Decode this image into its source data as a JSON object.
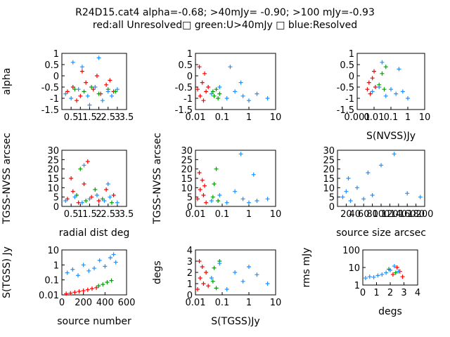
{
  "title": {
    "line1": "R24D15.cat4 alpha=-0.68; >40mJy= -0.90; >100 mJy=-0.93",
    "line2": "red:all Unresolved□ green:U>40mJy □ blue:Resolved"
  },
  "colors": {
    "red": "#ff0000",
    "green": "#00a000",
    "blue": "#1e90ff",
    "axis": "#000000"
  },
  "legend_note": "red=unresolved, green=unresolved >40mJy, blue=resolved",
  "chart_data": [
    {
      "type": "scatter",
      "xscale": "linear",
      "yscale": "linear",
      "xlim": [
        0,
        3.5
      ],
      "ylim": [
        -1.5,
        1
      ],
      "xticks": [
        "0.5",
        "1",
        "1.5",
        "2",
        "2.5",
        "3",
        "3.5"
      ],
      "yticks": [
        "1",
        "0.5",
        "0",
        "-0.5",
        "-1",
        "-1.5"
      ],
      "xlabel": "",
      "ylabel": "alpha",
      "series": [
        {
          "color": "red",
          "x": [
            0.3,
            0.6,
            1.0,
            1.3,
            1.7,
            2.1,
            2.4,
            2.8,
            1.1,
            0.8,
            1.9,
            2.6
          ],
          "y": [
            -0.7,
            -0.5,
            -0.9,
            -0.3,
            -0.6,
            -0.8,
            -0.4,
            -0.7,
            0.2,
            -1.1,
            0.0,
            -0.2
          ]
        },
        {
          "color": "green",
          "x": [
            0.7,
            1.2,
            1.6,
            2.0,
            2.5,
            2.9
          ],
          "y": [
            -0.6,
            -0.7,
            -0.5,
            -0.8,
            -0.6,
            -0.7
          ]
        },
        {
          "color": "blue",
          "x": [
            0.2,
            0.5,
            0.9,
            1.1,
            1.4,
            1.8,
            2.2,
            2.5,
            2.7,
            3.0,
            0.6,
            1.5,
            2.0
          ],
          "y": [
            -0.8,
            -1.0,
            -0.6,
            0.4,
            -0.9,
            -0.5,
            -1.1,
            -0.7,
            -0.9,
            -0.6,
            0.6,
            -1.3,
            0.8
          ]
        }
      ]
    },
    {
      "type": "scatter",
      "xscale": "log",
      "yscale": "linear",
      "xlim": [
        0.01,
        10
      ],
      "ylim": [
        -1.5,
        1
      ],
      "xticks": [
        "0.01",
        "0.1",
        "1",
        "10"
      ],
      "yticks": [
        "1",
        "0.5",
        "0",
        "-0.5",
        "-1",
        "-1.5"
      ],
      "xlabel": "",
      "ylabel": "",
      "series": [
        {
          "color": "red",
          "x": [
            0.012,
            0.015,
            0.018,
            0.02,
            0.025,
            0.03,
            0.014,
            0.022
          ],
          "y": [
            -0.6,
            -0.9,
            -0.3,
            -1.1,
            -0.7,
            -0.5,
            0.4,
            0.1
          ]
        },
        {
          "color": "green",
          "x": [
            0.045,
            0.05,
            0.06,
            0.08,
            0.07
          ],
          "y": [
            -0.7,
            -0.9,
            -0.6,
            -0.8,
            -1.0
          ]
        },
        {
          "color": "blue",
          "x": [
            0.04,
            0.08,
            0.15,
            0.3,
            0.6,
            1.0,
            2.0,
            5.0,
            0.2,
            0.5
          ],
          "y": [
            -0.8,
            -0.5,
            -1.0,
            -0.7,
            -0.9,
            -1.1,
            -0.8,
            -1.0,
            0.4,
            -0.3
          ]
        }
      ]
    },
    {
      "type": "scatter",
      "xscale": "log",
      "yscale": "linear",
      "xlim": [
        0.001,
        10
      ],
      "ylim": [
        -1.5,
        1
      ],
      "xticks": [
        "0.001",
        "0.01",
        "0.1",
        "1",
        "10"
      ],
      "yticks": [
        "1",
        "0.5",
        "0",
        "-0.5",
        "-1",
        "-1.5"
      ],
      "xlabel": "S(NVSS)Jy",
      "ylabel": "",
      "series": [
        {
          "color": "red",
          "x": [
            0.004,
            0.005,
            0.006,
            0.008,
            0.01,
            0.012
          ],
          "y": [
            -0.6,
            -0.3,
            -0.8,
            -0.1,
            0.2,
            -0.5
          ]
        },
        {
          "color": "green",
          "x": [
            0.02,
            0.03,
            0.04,
            0.05
          ],
          "y": [
            -0.4,
            0.1,
            -0.6,
            0.4
          ]
        },
        {
          "color": "blue",
          "x": [
            0.008,
            0.02,
            0.05,
            0.1,
            0.2,
            0.5,
            1.0,
            0.03,
            0.3
          ],
          "y": [
            -0.7,
            -0.5,
            -0.9,
            -0.6,
            -0.8,
            -0.7,
            -1.0,
            0.6,
            0.3
          ]
        }
      ]
    },
    {
      "type": "scatter",
      "xscale": "linear",
      "yscale": "linear",
      "xlim": [
        0,
        3.5
      ],
      "ylim": [
        0,
        30
      ],
      "xticks": [
        "0.5",
        "1",
        "1.5",
        "2",
        "2.5",
        "3",
        "3.5"
      ],
      "yticks": [
        "30",
        "25",
        "20",
        "15",
        "10",
        "5",
        "0"
      ],
      "xlabel": "radial dist deg",
      "ylabel": "TGSS-NVSS arcsec",
      "series": [
        {
          "color": "red",
          "x": [
            0.3,
            0.6,
            0.9,
            1.2,
            1.6,
            2.0,
            2.4,
            2.8,
            0.5,
            1.4
          ],
          "y": [
            4,
            8,
            2,
            12,
            5,
            3,
            9,
            6,
            15,
            24
          ]
        },
        {
          "color": "green",
          "x": [
            0.8,
            1.3,
            1.8,
            2.2,
            2.7,
            1.0
          ],
          "y": [
            6,
            3,
            9,
            4,
            2,
            20
          ]
        },
        {
          "color": "blue",
          "x": [
            0.2,
            0.7,
            1.1,
            1.5,
            1.9,
            2.3,
            2.6,
            3.0,
            1.2,
            2.5
          ],
          "y": [
            3,
            5,
            2,
            4,
            6,
            3,
            5,
            2,
            22,
            12
          ]
        }
      ]
    },
    {
      "type": "scatter",
      "xscale": "log",
      "yscale": "linear",
      "xlim": [
        0.01,
        10
      ],
      "ylim": [
        0,
        30
      ],
      "xticks": [
        "0.01",
        "0.1",
        "1",
        "10"
      ],
      "yticks": [
        "30",
        "25",
        "20",
        "15",
        "10",
        "5",
        "0"
      ],
      "xlabel": "",
      "ylabel": "TGSS-NVSS arcsec",
      "series": [
        {
          "color": "red",
          "x": [
            0.012,
            0.015,
            0.018,
            0.02,
            0.025,
            0.014,
            0.022
          ],
          "y": [
            4,
            9,
            14,
            6,
            2,
            18,
            11
          ]
        },
        {
          "color": "green",
          "x": [
            0.045,
            0.05,
            0.06,
            0.07
          ],
          "y": [
            5,
            12,
            20,
            3
          ]
        },
        {
          "color": "blue",
          "x": [
            0.04,
            0.08,
            0.15,
            0.3,
            0.6,
            1.0,
            2.0,
            5.0,
            0.5,
            1.5
          ],
          "y": [
            3,
            6,
            2,
            8,
            4,
            2,
            3,
            4,
            28,
            17
          ]
        }
      ]
    },
    {
      "type": "scatter",
      "xscale": "linear",
      "yscale": "linear",
      "xlim": [
        0,
        200
      ],
      "ylim": [
        0,
        30
      ],
      "xticks": [
        "20",
        "40",
        "60",
        "80",
        "100",
        "120",
        "140",
        "160",
        "180",
        "200"
      ],
      "yticks": [
        "30",
        "25",
        "20",
        "15",
        "10",
        "5",
        "0"
      ],
      "xlabel": "source size arcsec",
      "ylabel": "",
      "series": [
        {
          "color": "blue",
          "x": [
            12,
            20,
            30,
            45,
            60,
            80,
            100,
            130,
            160,
            190,
            25,
            70
          ],
          "y": [
            5,
            8,
            3,
            10,
            4,
            6,
            22,
            28,
            7,
            5,
            15,
            18
          ]
        }
      ]
    },
    {
      "type": "scatter",
      "xscale": "linear",
      "yscale": "log",
      "xlim": [
        0,
        600
      ],
      "ylim": [
        0.01,
        10
      ],
      "xticks": [
        "0",
        "200",
        "400",
        "600"
      ],
      "yticks": [
        "10",
        "1",
        "0.1",
        "0.01"
      ],
      "xlabel": "source number",
      "ylabel": "S(TGSS) Jy",
      "series": [
        {
          "color": "red",
          "x": [
            40,
            80,
            120,
            160,
            200,
            240,
            280,
            320
          ],
          "y": [
            0.012,
            0.013,
            0.015,
            0.017,
            0.019,
            0.022,
            0.026,
            0.03
          ]
        },
        {
          "color": "green",
          "x": [
            340,
            380,
            420,
            460
          ],
          "y": [
            0.04,
            0.05,
            0.07,
            0.09
          ]
        },
        {
          "color": "blue",
          "x": [
            50,
            100,
            150,
            200,
            250,
            300,
            350,
            400,
            450,
            480,
            500
          ],
          "y": [
            0.3,
            0.5,
            0.2,
            1.0,
            0.4,
            0.6,
            2.0,
            0.8,
            3.0,
            5.0,
            1.5
          ]
        }
      ]
    },
    {
      "type": "scatter",
      "xscale": "log",
      "yscale": "linear",
      "xlim": [
        0.01,
        10
      ],
      "ylim": [
        0,
        4
      ],
      "xticks": [
        "0.01",
        "0.1",
        "1",
        "10"
      ],
      "yticks": [
        "4",
        "3",
        "2",
        "1",
        "0"
      ],
      "xlabel": "S(TGSS)Jy",
      "ylabel": "degs",
      "series": [
        {
          "color": "red",
          "x": [
            0.012,
            0.015,
            0.018,
            0.02,
            0.025,
            0.03,
            0.014
          ],
          "y": [
            0.5,
            1.5,
            2.5,
            1.0,
            2.0,
            0.8,
            3.0
          ]
        },
        {
          "color": "green",
          "x": [
            0.045,
            0.05,
            0.06,
            0.08
          ],
          "y": [
            1.2,
            2.4,
            0.6,
            3.0
          ]
        },
        {
          "color": "blue",
          "x": [
            0.04,
            0.08,
            0.15,
            0.3,
            0.6,
            1.0,
            2.0,
            5.0
          ],
          "y": [
            1.5,
            2.8,
            0.5,
            2.0,
            1.2,
            2.5,
            1.8,
            1.0
          ]
        }
      ]
    },
    {
      "type": "scatter",
      "xscale": "linear",
      "yscale": "log",
      "xlim": [
        0,
        4
      ],
      "ylim": [
        1,
        100
      ],
      "xticks": [
        "0",
        "1",
        "2",
        "3",
        "4"
      ],
      "yticks": [
        "100",
        "10",
        "1"
      ],
      "xlabel": "degs",
      "ylabel": "rms mJy",
      "series": [
        {
          "color": "red",
          "x": [
            2.2,
            2.5,
            2.7,
            2.9
          ],
          "y": [
            4,
            10,
            6,
            3
          ]
        },
        {
          "color": "green",
          "x": [
            1.9,
            2.4
          ],
          "y": [
            8,
            5
          ]
        },
        {
          "color": "blue",
          "x": [
            0.2,
            0.5,
            0.8,
            1.1,
            1.4,
            1.7,
            2.0,
            2.3,
            2.6
          ],
          "y": [
            2.5,
            3,
            2.8,
            3.5,
            4,
            5,
            7,
            12,
            6
          ]
        }
      ]
    }
  ]
}
